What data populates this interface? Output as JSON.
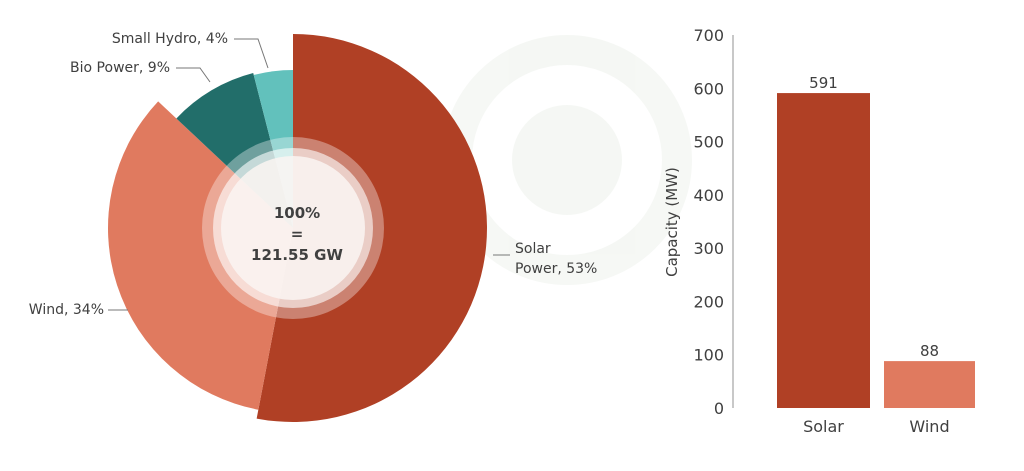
{
  "chart_data": [
    {
      "type": "pie",
      "title": "",
      "center_label": [
        "100%",
        "=",
        "121.55 GW"
      ],
      "slices": [
        {
          "name": "Solar Power",
          "label": [
            "Solar",
            "Power, 53%"
          ],
          "value": 53,
          "color": "#b04025"
        },
        {
          "name": "Wind",
          "label": [
            "Wind, 34%"
          ],
          "value": 34,
          "color": "#e07a5f"
        },
        {
          "name": "Bio Power",
          "label": [
            "Bio Power, 9%"
          ],
          "value": 9,
          "color": "#226e6a"
        },
        {
          "name": "Small Hydro",
          "label": [
            "Small Hydro, 4%"
          ],
          "value": 4,
          "color": "#62c1bc"
        }
      ]
    },
    {
      "type": "bar",
      "categories": [
        "Solar",
        "Wind"
      ],
      "values": [
        591,
        88
      ],
      "colors": [
        "#b04025",
        "#e07a5f"
      ],
      "xlabel": "",
      "ylabel": "Capacity (MW)",
      "ylim": [
        0,
        700
      ],
      "yticks": [
        0,
        100,
        200,
        300,
        400,
        500,
        600,
        700
      ],
      "grid": false
    }
  ]
}
